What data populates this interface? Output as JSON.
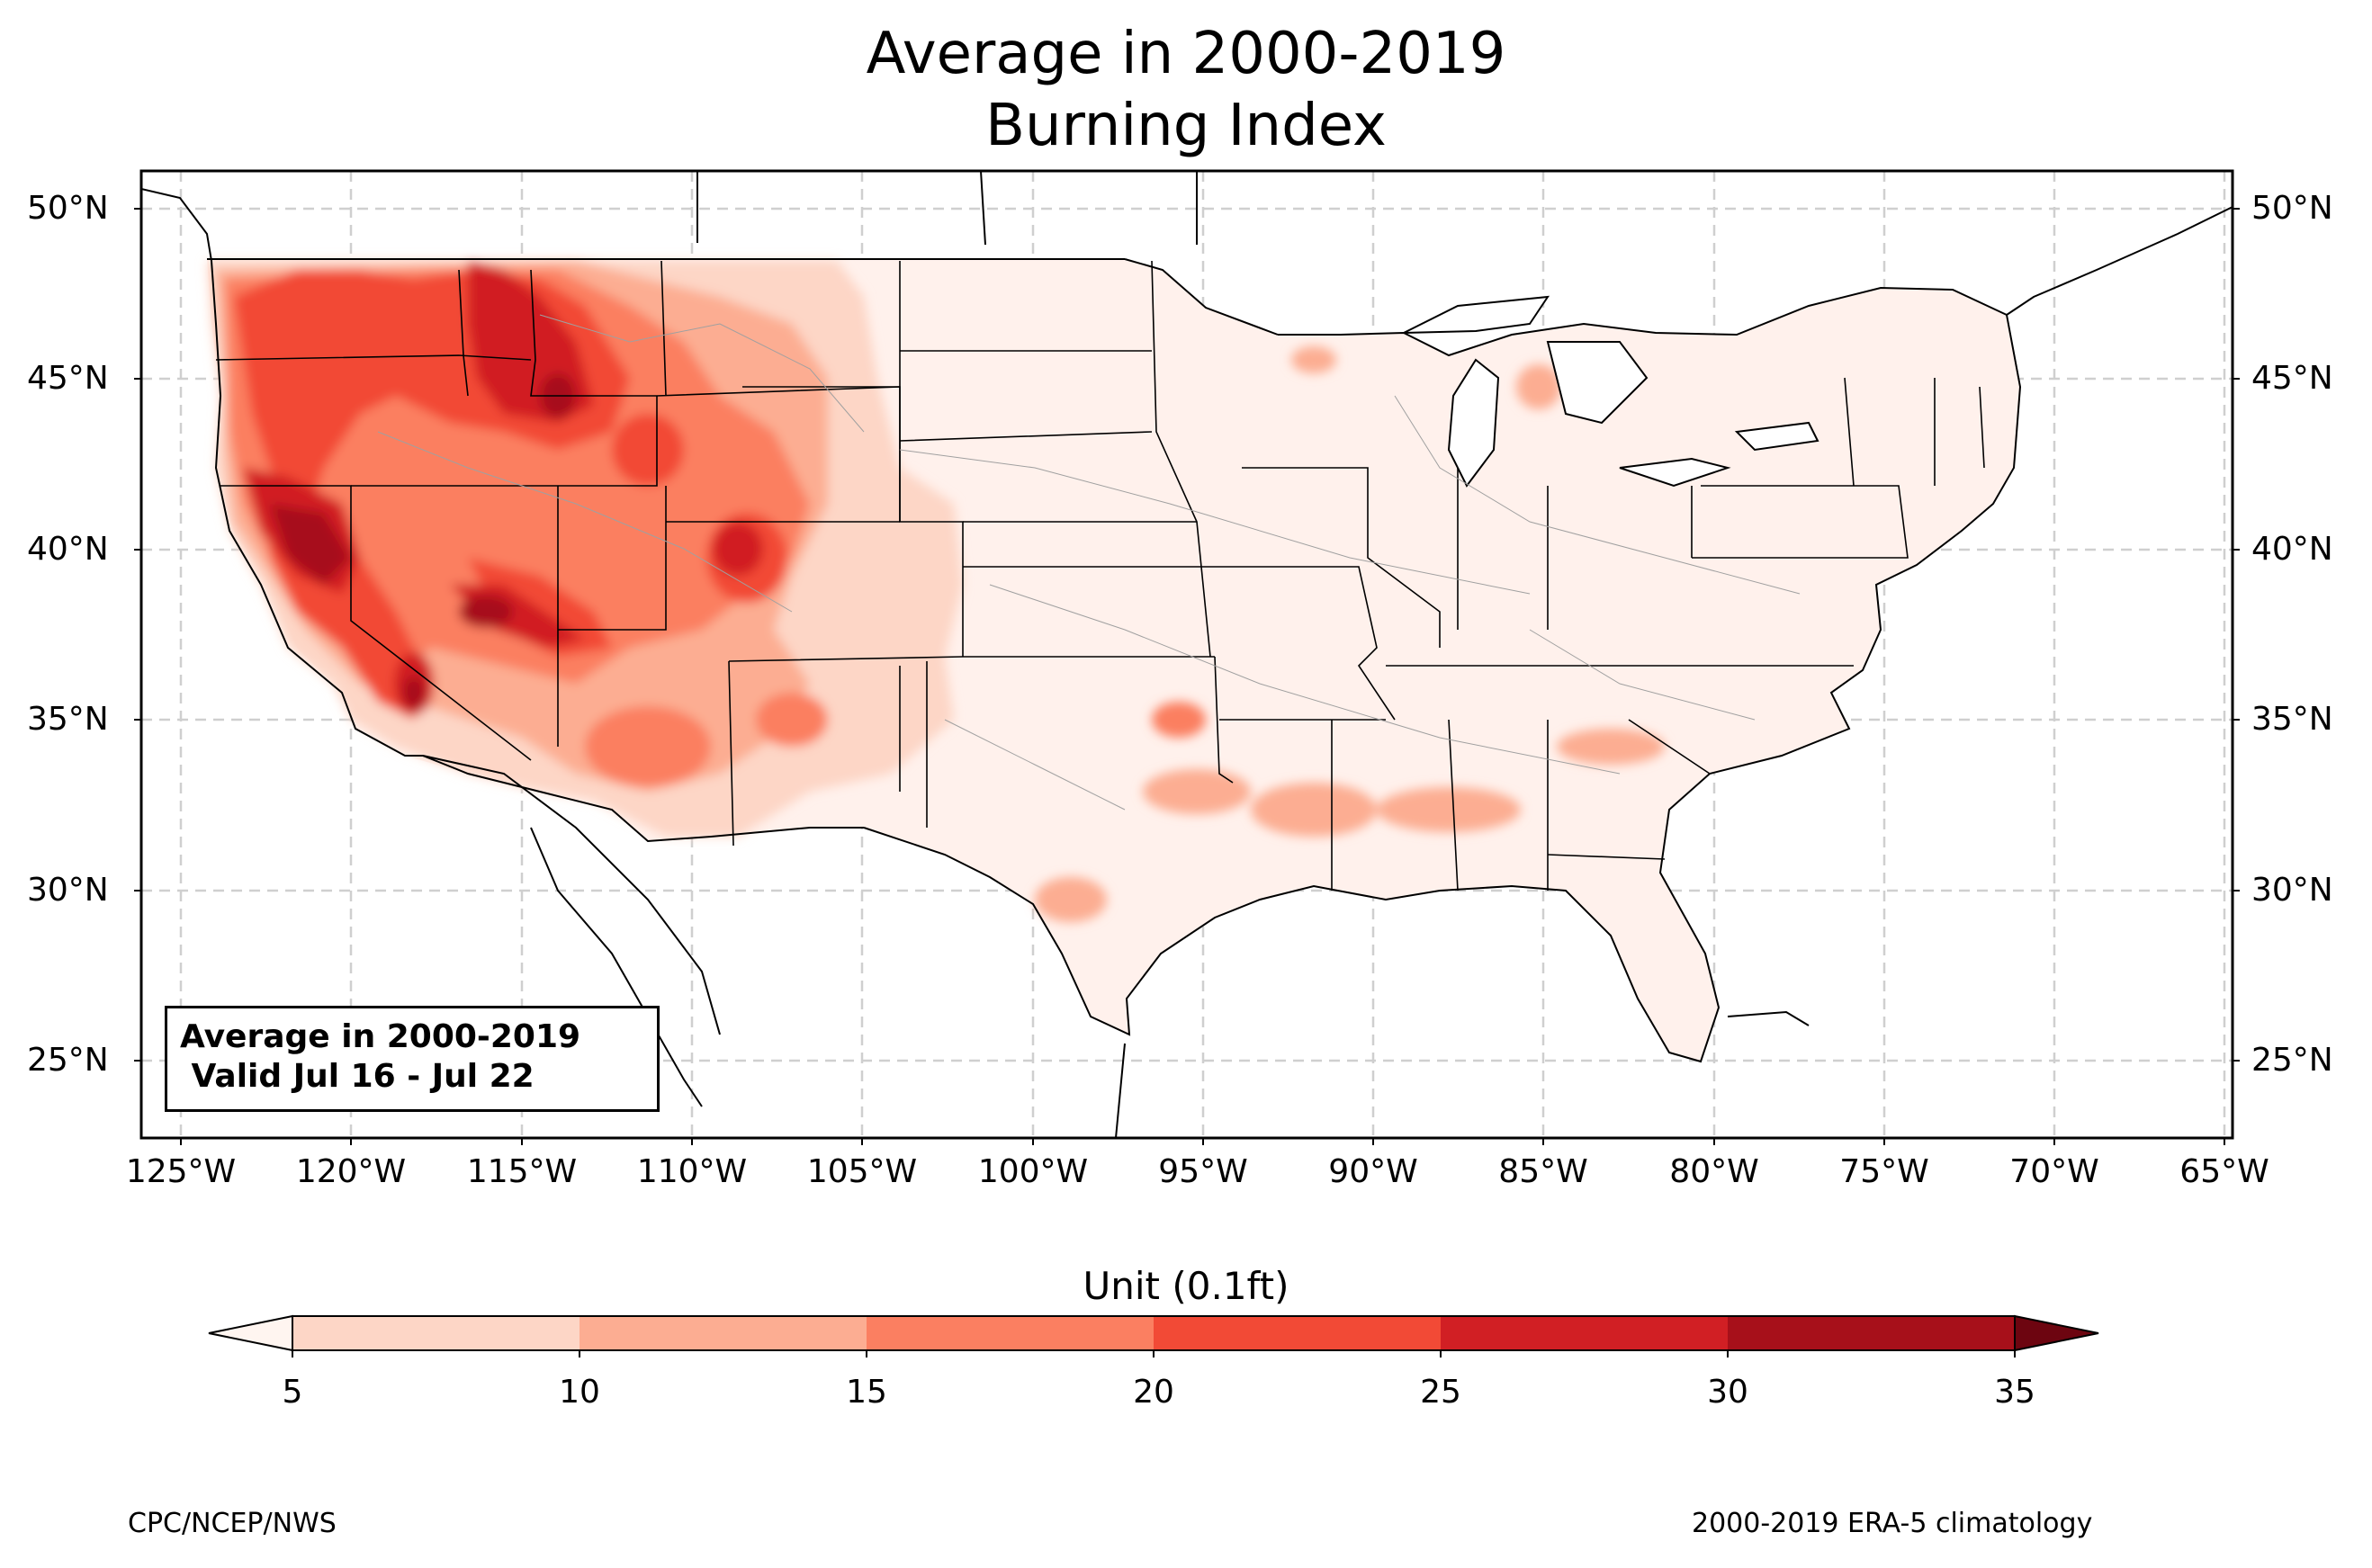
{
  "title": {
    "line1": "Average in 2000-2019",
    "line2": "Burning Index"
  },
  "map": {
    "projection": "PlateCarree",
    "lon_range": [
      -126.5,
      -64.8
    ],
    "lat_range": [
      22.8,
      51.2
    ],
    "gridlines": "dashed",
    "lat_labels": [
      "50°N",
      "45°N",
      "40°N",
      "35°N",
      "30°N",
      "25°N"
    ],
    "lon_labels": [
      "125°W",
      "120°W",
      "115°W",
      "110°W",
      "105°W",
      "100°W",
      "95°W",
      "90°W",
      "85°W",
      "80°W",
      "75°W",
      "70°W",
      "65°W"
    ]
  },
  "info_box": {
    "line1": "Average in 2000-2019",
    "line2": " Valid Jul 16 - Jul 22"
  },
  "colorbar": {
    "label": "Unit (0.1ft)",
    "ticks": [
      "5",
      "10",
      "15",
      "20",
      "25",
      "30",
      "35"
    ],
    "levels": [
      5,
      10,
      15,
      20,
      25,
      30,
      35
    ],
    "colors": [
      "#fff5f0",
      "#fdd6c6",
      "#fcad92",
      "#fb7f61",
      "#f24a36",
      "#d11f24",
      "#a7101a",
      "#6d0510"
    ],
    "extend": "both"
  },
  "footer": {
    "left": "CPC/NCEP/NWS",
    "right": "2000-2019 ERA-5 climatology"
  }
}
